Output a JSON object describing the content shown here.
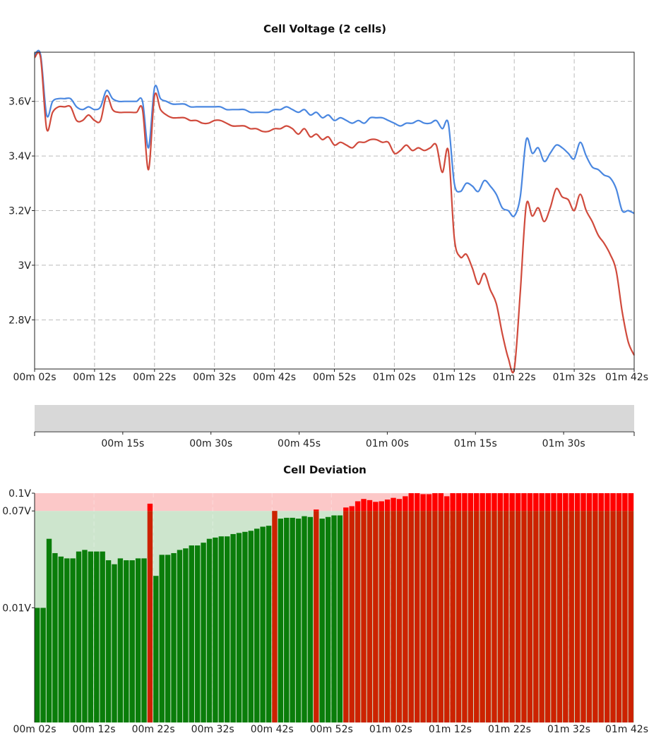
{
  "chart_data": [
    {
      "type": "line",
      "title": "Cell Voltage (2 cells)",
      "xlabel": "",
      "ylabel": "",
      "x_tick_labels": [
        "00m 02s",
        "00m 12s",
        "00m 22s",
        "00m 32s",
        "00m 42s",
        "00m 52s",
        "01m 02s",
        "01m 12s",
        "01m 22s",
        "01m 32s",
        "01m 42s"
      ],
      "y_tick_labels": [
        "3.6V",
        "3.4V",
        "3.2V",
        "3V",
        "2.8V"
      ],
      "x_unit": "seconds",
      "xlim": [
        2,
        102
      ],
      "ylim": [
        2.62,
        3.78
      ],
      "grid": true,
      "series": [
        {
          "color": "#4a87e0",
          "points": [
            [
              2,
              3.77
            ],
            [
              3,
              3.77
            ],
            [
              4,
              3.55
            ],
            [
              5,
              3.6
            ],
            [
              6,
              3.61
            ],
            [
              7,
              3.61
            ],
            [
              8,
              3.61
            ],
            [
              9,
              3.58
            ],
            [
              10,
              3.57
            ],
            [
              11,
              3.58
            ],
            [
              12,
              3.57
            ],
            [
              13,
              3.58
            ],
            [
              14,
              3.64
            ],
            [
              15,
              3.61
            ],
            [
              16,
              3.6
            ],
            [
              17,
              3.6
            ],
            [
              18,
              3.6
            ],
            [
              19,
              3.6
            ],
            [
              20,
              3.6
            ],
            [
              21,
              3.43
            ],
            [
              22,
              3.65
            ],
            [
              23,
              3.61
            ],
            [
              24,
              3.6
            ],
            [
              25,
              3.59
            ],
            [
              26,
              3.59
            ],
            [
              27,
              3.59
            ],
            [
              28,
              3.58
            ],
            [
              29,
              3.58
            ],
            [
              30,
              3.58
            ],
            [
              31,
              3.58
            ],
            [
              32,
              3.58
            ],
            [
              33,
              3.58
            ],
            [
              34,
              3.57
            ],
            [
              35,
              3.57
            ],
            [
              36,
              3.57
            ],
            [
              37,
              3.57
            ],
            [
              38,
              3.56
            ],
            [
              39,
              3.56
            ],
            [
              40,
              3.56
            ],
            [
              41,
              3.56
            ],
            [
              42,
              3.57
            ],
            [
              43,
              3.57
            ],
            [
              44,
              3.58
            ],
            [
              45,
              3.57
            ],
            [
              46,
              3.56
            ],
            [
              47,
              3.57
            ],
            [
              48,
              3.55
            ],
            [
              49,
              3.56
            ],
            [
              50,
              3.54
            ],
            [
              51,
              3.55
            ],
            [
              52,
              3.53
            ],
            [
              53,
              3.54
            ],
            [
              54,
              3.53
            ],
            [
              55,
              3.52
            ],
            [
              56,
              3.53
            ],
            [
              57,
              3.52
            ],
            [
              58,
              3.54
            ],
            [
              59,
              3.54
            ],
            [
              60,
              3.54
            ],
            [
              61,
              3.53
            ],
            [
              62,
              3.52
            ],
            [
              63,
              3.51
            ],
            [
              64,
              3.52
            ],
            [
              65,
              3.52
            ],
            [
              66,
              3.53
            ],
            [
              67,
              3.52
            ],
            [
              68,
              3.52
            ],
            [
              69,
              3.53
            ],
            [
              70,
              3.5
            ],
            [
              71,
              3.52
            ],
            [
              72,
              3.3
            ],
            [
              73,
              3.27
            ],
            [
              74,
              3.3
            ],
            [
              75,
              3.29
            ],
            [
              76,
              3.27
            ],
            [
              77,
              3.31
            ],
            [
              78,
              3.29
            ],
            [
              79,
              3.26
            ],
            [
              80,
              3.21
            ],
            [
              81,
              3.2
            ],
            [
              82,
              3.18
            ],
            [
              83,
              3.25
            ],
            [
              84,
              3.46
            ],
            [
              85,
              3.41
            ],
            [
              86,
              3.43
            ],
            [
              87,
              3.38
            ],
            [
              88,
              3.41
            ],
            [
              89,
              3.44
            ],
            [
              90,
              3.43
            ],
            [
              91,
              3.41
            ],
            [
              92,
              3.39
            ],
            [
              93,
              3.45
            ],
            [
              94,
              3.4
            ],
            [
              95,
              3.36
            ],
            [
              96,
              3.35
            ],
            [
              97,
              3.33
            ],
            [
              98,
              3.32
            ],
            [
              99,
              3.28
            ],
            [
              100,
              3.2
            ],
            [
              101,
              3.2
            ],
            [
              102,
              3.19
            ]
          ]
        },
        {
          "color": "#d04a3c",
          "points": [
            [
              2,
              3.76
            ],
            [
              3,
              3.76
            ],
            [
              4,
              3.5
            ],
            [
              5,
              3.56
            ],
            [
              6,
              3.58
            ],
            [
              7,
              3.58
            ],
            [
              8,
              3.58
            ],
            [
              9,
              3.53
            ],
            [
              10,
              3.53
            ],
            [
              11,
              3.55
            ],
            [
              12,
              3.53
            ],
            [
              13,
              3.53
            ],
            [
              14,
              3.62
            ],
            [
              15,
              3.57
            ],
            [
              16,
              3.56
            ],
            [
              17,
              3.56
            ],
            [
              18,
              3.56
            ],
            [
              19,
              3.56
            ],
            [
              20,
              3.57
            ],
            [
              21,
              3.35
            ],
            [
              22,
              3.62
            ],
            [
              23,
              3.57
            ],
            [
              24,
              3.55
            ],
            [
              25,
              3.54
            ],
            [
              26,
              3.54
            ],
            [
              27,
              3.54
            ],
            [
              28,
              3.53
            ],
            [
              29,
              3.53
            ],
            [
              30,
              3.52
            ],
            [
              31,
              3.52
            ],
            [
              32,
              3.53
            ],
            [
              33,
              3.53
            ],
            [
              34,
              3.52
            ],
            [
              35,
              3.51
            ],
            [
              36,
              3.51
            ],
            [
              37,
              3.51
            ],
            [
              38,
              3.5
            ],
            [
              39,
              3.5
            ],
            [
              40,
              3.49
            ],
            [
              41,
              3.49
            ],
            [
              42,
              3.5
            ],
            [
              43,
              3.5
            ],
            [
              44,
              3.51
            ],
            [
              45,
              3.5
            ],
            [
              46,
              3.48
            ],
            [
              47,
              3.5
            ],
            [
              48,
              3.47
            ],
            [
              49,
              3.48
            ],
            [
              50,
              3.46
            ],
            [
              51,
              3.47
            ],
            [
              52,
              3.44
            ],
            [
              53,
              3.45
            ],
            [
              54,
              3.44
            ],
            [
              55,
              3.43
            ],
            [
              56,
              3.45
            ],
            [
              57,
              3.45
            ],
            [
              58,
              3.46
            ],
            [
              59,
              3.46
            ],
            [
              60,
              3.45
            ],
            [
              61,
              3.45
            ],
            [
              62,
              3.41
            ],
            [
              63,
              3.42
            ],
            [
              64,
              3.44
            ],
            [
              65,
              3.42
            ],
            [
              66,
              3.43
            ],
            [
              67,
              3.42
            ],
            [
              68,
              3.43
            ],
            [
              69,
              3.44
            ],
            [
              70,
              3.34
            ],
            [
              71,
              3.42
            ],
            [
              72,
              3.1
            ],
            [
              73,
              3.03
            ],
            [
              74,
              3.04
            ],
            [
              75,
              2.99
            ],
            [
              76,
              2.93
            ],
            [
              77,
              2.97
            ],
            [
              78,
              2.91
            ],
            [
              79,
              2.86
            ],
            [
              80,
              2.75
            ],
            [
              81,
              2.66
            ],
            [
              82,
              2.62
            ],
            [
              83,
              2.9
            ],
            [
              84,
              3.22
            ],
            [
              85,
              3.18
            ],
            [
              86,
              3.21
            ],
            [
              87,
              3.16
            ],
            [
              88,
              3.21
            ],
            [
              89,
              3.28
            ],
            [
              90,
              3.25
            ],
            [
              91,
              3.24
            ],
            [
              92,
              3.2
            ],
            [
              93,
              3.26
            ],
            [
              94,
              3.2
            ],
            [
              95,
              3.16
            ],
            [
              96,
              3.11
            ],
            [
              97,
              3.08
            ],
            [
              98,
              3.04
            ],
            [
              99,
              2.98
            ],
            [
              100,
              2.83
            ],
            [
              101,
              2.72
            ],
            [
              102,
              2.67
            ]
          ]
        }
      ]
    },
    {
      "type": "timeline",
      "title": "",
      "tick_labels": [
        "00m 15s",
        "00m 30s",
        "00m 45s",
        "01m 00s",
        "01m 15s",
        "01m 30s"
      ],
      "track_color": "#d8d8d8"
    },
    {
      "type": "bar",
      "title": "Cell Deviation",
      "xlabel": "",
      "ylabel": "",
      "x_tick_labels": [
        "00m 02s",
        "00m 12s",
        "00m 22s",
        "00m 32s",
        "00m 42s",
        "00m 52s",
        "01m 02s",
        "01m 12s",
        "01m 22s",
        "01m 32s",
        "01m 42s"
      ],
      "y_tick_labels": [
        "0.1V",
        "0.07V",
        "0.01V"
      ],
      "y_scale": "log",
      "ylim": [
        0.001,
        0.1
      ],
      "thresholds": {
        "warning": 0.07,
        "max": 0.1
      },
      "colors": {
        "ok_band": "#cde5cd",
        "warn_band": "#fcc8c8",
        "ok_bar": "#0a7d0a",
        "warn_bar": "#cc2200",
        "over_bar": "#ff0000"
      },
      "x_start": 2,
      "x_step": 1,
      "values": [
        0.01,
        0.01,
        0.04,
        0.03,
        0.028,
        0.027,
        0.027,
        0.031,
        0.032,
        0.031,
        0.031,
        0.031,
        0.026,
        0.024,
        0.027,
        0.026,
        0.026,
        0.027,
        0.027,
        0.081,
        0.019,
        0.029,
        0.029,
        0.03,
        0.032,
        0.033,
        0.035,
        0.035,
        0.037,
        0.04,
        0.041,
        0.042,
        0.042,
        0.044,
        0.045,
        0.046,
        0.047,
        0.049,
        0.051,
        0.052,
        0.07,
        0.06,
        0.061,
        0.061,
        0.06,
        0.063,
        0.062,
        0.072,
        0.06,
        0.062,
        0.064,
        0.064,
        0.075,
        0.077,
        0.085,
        0.089,
        0.087,
        0.084,
        0.085,
        0.088,
        0.091,
        0.089,
        0.094,
        0.1,
        0.1,
        0.098,
        0.098,
        0.1,
        0.1,
        0.094,
        0.1,
        0.1,
        0.1,
        0.1,
        0.1,
        0.1,
        0.1,
        0.1,
        0.1,
        0.1,
        0.1,
        0.1,
        0.1,
        0.1,
        0.1,
        0.1,
        0.1,
        0.1,
        0.1,
        0.1,
        0.1,
        0.1,
        0.1,
        0.1,
        0.1,
        0.1,
        0.1,
        0.1,
        0.1,
        0.1,
        0.1
      ]
    }
  ]
}
